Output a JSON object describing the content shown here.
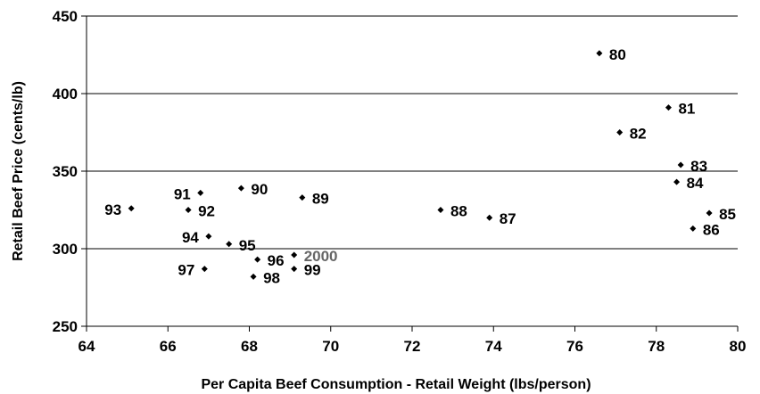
{
  "chart_data": {
    "type": "scatter",
    "title": "",
    "xlabel": "Per Capita Beef Consumption - Retail Weight (lbs/person)",
    "ylabel": "Retail Beef Price (cents/lb)",
    "xlim": [
      64,
      80
    ],
    "ylim": [
      250,
      450
    ],
    "x_ticks": [
      "64",
      "66",
      "68",
      "70",
      "72",
      "74",
      "76",
      "78",
      "80"
    ],
    "y_ticks": [
      "250",
      "300",
      "350",
      "400",
      "450"
    ],
    "grid": "horizontal",
    "marker_color": "#000000",
    "highlight_label_color": "#666666",
    "points": [
      {
        "label": "80",
        "x": 76.6,
        "y": 426
      },
      {
        "label": "81",
        "x": 78.3,
        "y": 391
      },
      {
        "label": "82",
        "x": 77.1,
        "y": 375
      },
      {
        "label": "83",
        "x": 78.6,
        "y": 354
      },
      {
        "label": "84",
        "x": 78.5,
        "y": 343
      },
      {
        "label": "85",
        "x": 79.3,
        "y": 323
      },
      {
        "label": "86",
        "x": 78.9,
        "y": 313
      },
      {
        "label": "87",
        "x": 73.9,
        "y": 320
      },
      {
        "label": "88",
        "x": 72.7,
        "y": 325
      },
      {
        "label": "89",
        "x": 69.3,
        "y": 333
      },
      {
        "label": "90",
        "x": 67.8,
        "y": 339
      },
      {
        "label": "91",
        "x": 66.8,
        "y": 336
      },
      {
        "label": "92",
        "x": 66.5,
        "y": 325
      },
      {
        "label": "93",
        "x": 65.1,
        "y": 326
      },
      {
        "label": "94",
        "x": 67.0,
        "y": 308
      },
      {
        "label": "95",
        "x": 67.5,
        "y": 303
      },
      {
        "label": "96",
        "x": 68.2,
        "y": 293
      },
      {
        "label": "97",
        "x": 66.9,
        "y": 287
      },
      {
        "label": "98",
        "x": 68.1,
        "y": 282
      },
      {
        "label": "99",
        "x": 69.1,
        "y": 287
      },
      {
        "label": "2000",
        "x": 69.1,
        "y": 296
      }
    ]
  }
}
